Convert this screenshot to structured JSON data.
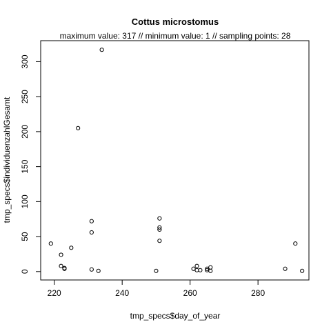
{
  "chart_data": {
    "type": "scatter",
    "title": "Cottus microstomus",
    "subtitle": "maximum value: 317  //  minimum value: 1  // sampling points: 28",
    "xlabel": "tmp_specs$day_of_year",
    "ylabel": "tmp_specs$individuenzahlGesamt",
    "xlim": [
      216,
      295
    ],
    "ylim": [
      -12,
      330
    ],
    "xticks": [
      220,
      240,
      260,
      280
    ],
    "yticks": [
      0,
      50,
      100,
      150,
      200,
      250,
      300
    ],
    "grid": false,
    "series": [
      {
        "points": [
          {
            "x": 219,
            "y": 40
          },
          {
            "x": 222,
            "y": 24
          },
          {
            "x": 222,
            "y": 8
          },
          {
            "x": 223,
            "y": 5
          },
          {
            "x": 223,
            "y": 4
          },
          {
            "x": 225,
            "y": 34
          },
          {
            "x": 227,
            "y": 205
          },
          {
            "x": 231,
            "y": 72
          },
          {
            "x": 231,
            "y": 56
          },
          {
            "x": 231,
            "y": 3
          },
          {
            "x": 233,
            "y": 1
          },
          {
            "x": 234,
            "y": 317
          },
          {
            "x": 250,
            "y": 1
          },
          {
            "x": 251,
            "y": 76
          },
          {
            "x": 251,
            "y": 63
          },
          {
            "x": 251,
            "y": 60
          },
          {
            "x": 251,
            "y": 44
          },
          {
            "x": 261,
            "y": 4
          },
          {
            "x": 262,
            "y": 8
          },
          {
            "x": 262,
            "y": 2
          },
          {
            "x": 263,
            "y": 2
          },
          {
            "x": 265,
            "y": 4
          },
          {
            "x": 265,
            "y": 2
          },
          {
            "x": 266,
            "y": 6
          },
          {
            "x": 266,
            "y": 1
          },
          {
            "x": 288,
            "y": 4
          },
          {
            "x": 291,
            "y": 40
          },
          {
            "x": 293,
            "y": 1
          }
        ]
      }
    ]
  }
}
